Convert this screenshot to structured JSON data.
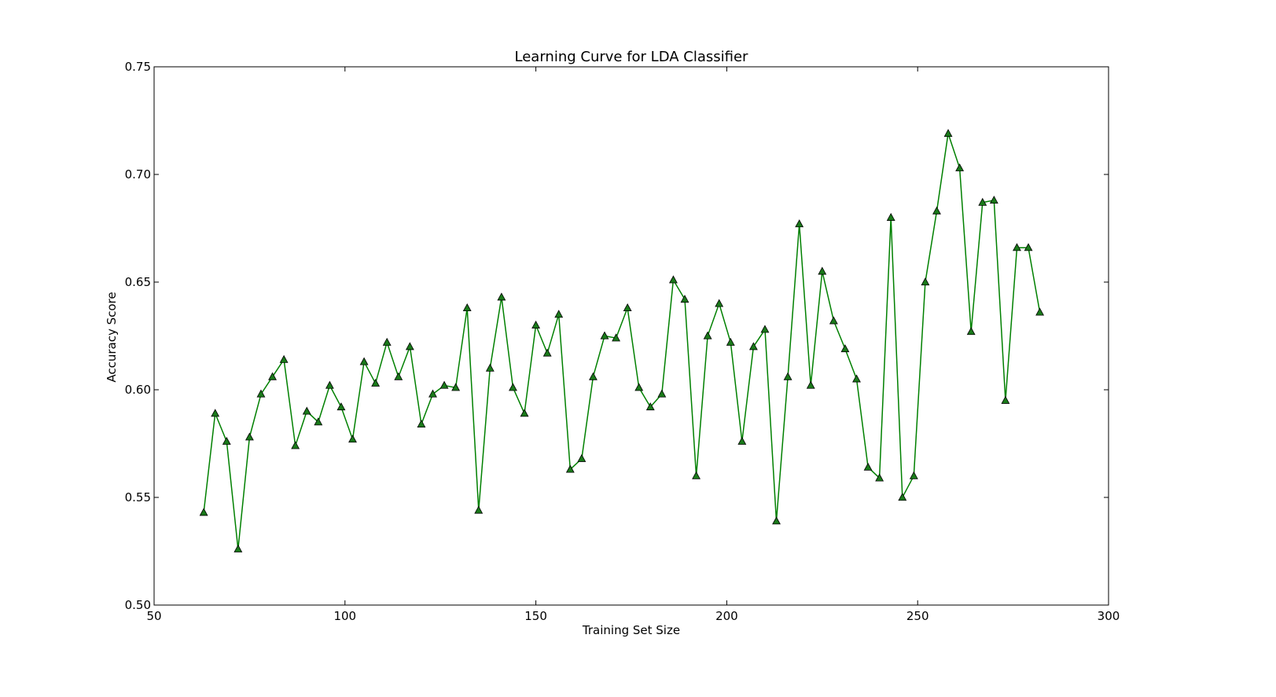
{
  "chart_data": {
    "type": "line",
    "title": "Learning Curve for LDA Classifier",
    "xlabel": "Training Set Size",
    "ylabel": "Accuracy Score",
    "xlim": [
      50,
      300
    ],
    "ylim": [
      0.5,
      0.75
    ],
    "xticks": [
      50,
      100,
      150,
      200,
      250,
      300
    ],
    "yticks": [
      0.5,
      0.55,
      0.6,
      0.65,
      0.7,
      0.75
    ],
    "xtick_labels": [
      "50",
      "100",
      "150",
      "200",
      "250",
      "300"
    ],
    "ytick_labels": [
      "0.50",
      "0.55",
      "0.60",
      "0.65",
      "0.70",
      "0.75"
    ],
    "grid": false,
    "line_color": "#008000",
    "marker": "triangle",
    "marker_color": "#1a7a1a",
    "x": [
      63,
      66,
      69,
      72,
      75,
      78,
      81,
      84,
      87,
      90,
      93,
      96,
      99,
      102,
      105,
      108,
      111,
      114,
      117,
      120,
      123,
      126,
      129,
      132,
      135,
      138,
      141,
      144,
      147,
      150,
      153,
      156,
      159,
      162,
      165,
      168,
      171,
      174,
      177,
      180,
      183,
      186,
      189,
      192,
      195,
      198,
      201,
      204,
      207,
      210,
      213,
      216,
      219,
      222,
      225,
      228,
      231,
      234,
      237,
      240,
      243,
      246,
      249,
      252,
      255,
      258,
      261,
      264,
      267,
      270,
      273,
      276,
      279,
      282
    ],
    "y": [
      0.543,
      0.589,
      0.576,
      0.526,
      0.578,
      0.598,
      0.606,
      0.614,
      0.574,
      0.59,
      0.585,
      0.602,
      0.592,
      0.577,
      0.613,
      0.603,
      0.622,
      0.606,
      0.62,
      0.584,
      0.598,
      0.602,
      0.601,
      0.638,
      0.544,
      0.61,
      0.643,
      0.601,
      0.589,
      0.63,
      0.617,
      0.635,
      0.563,
      0.568,
      0.606,
      0.625,
      0.624,
      0.638,
      0.601,
      0.592,
      0.598,
      0.651,
      0.642,
      0.56,
      0.625,
      0.64,
      0.622,
      0.576,
      0.62,
      0.628,
      0.539,
      0.606,
      0.677,
      0.602,
      0.655,
      0.632,
      0.619,
      0.605,
      0.564,
      0.559,
      0.68,
      0.55,
      0.56,
      0.65,
      0.683,
      0.719,
      0.703,
      0.627,
      0.687,
      0.688,
      0.595,
      0.666,
      0.666,
      0.636
    ]
  }
}
